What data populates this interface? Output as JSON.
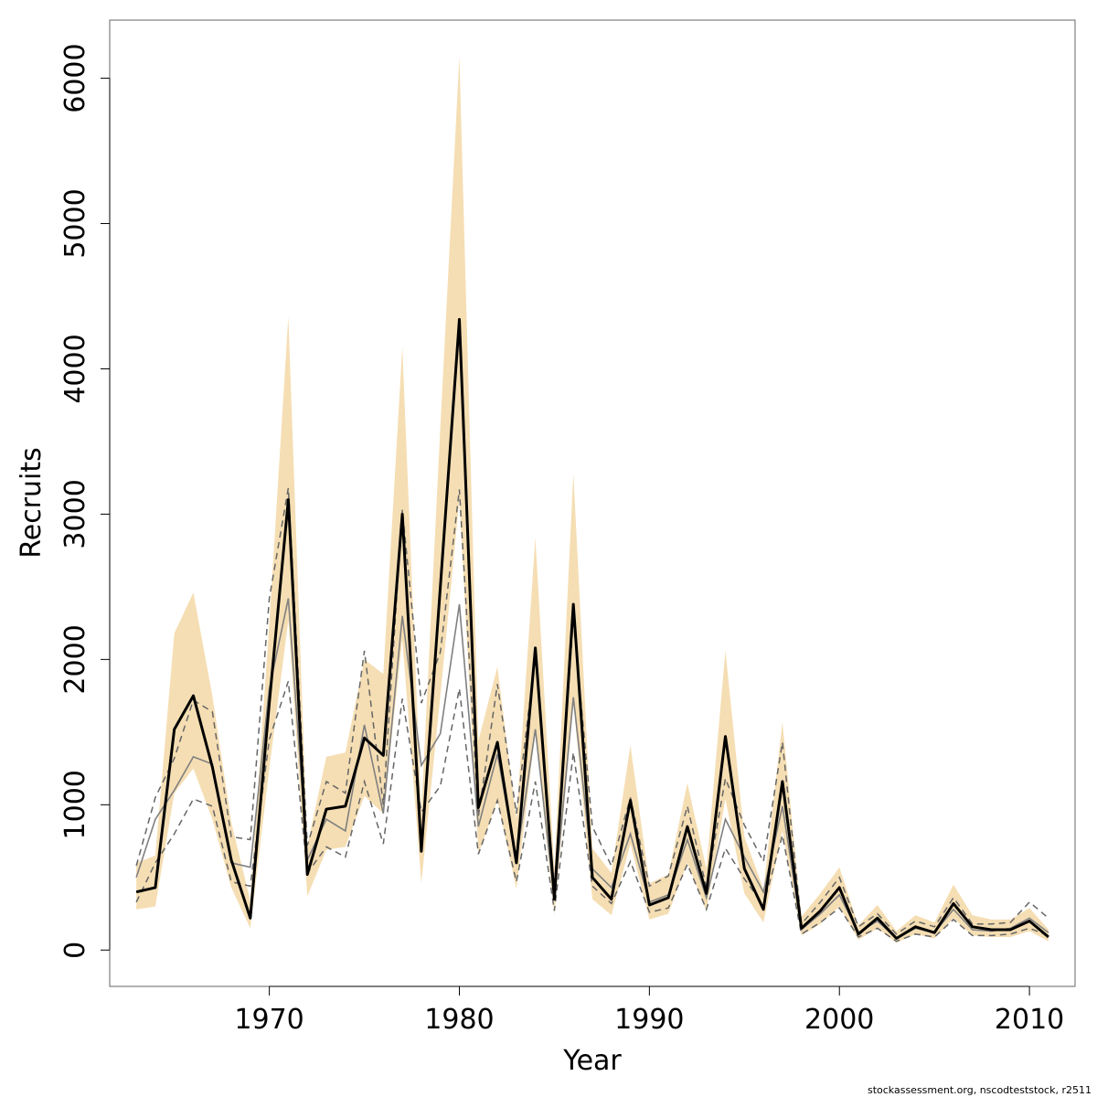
{
  "chart_data": {
    "type": "line",
    "xlabel": "Year",
    "ylabel": "Recruits",
    "xlim": [
      1961.6,
      2012.4
    ],
    "ylim": [
      -250,
      6400
    ],
    "x_ticks": [
      1970,
      1980,
      1990,
      2000,
      2010
    ],
    "y_ticks": [
      0,
      1000,
      2000,
      3000,
      4000,
      5000,
      6000
    ],
    "footnote": "stockassessment.org, nscodteststock, r2511",
    "colors": {
      "band": "#f5deb3",
      "estimate": "#000000",
      "previous": "#808080",
      "previous_dashed": "#666666",
      "frame": "#666666"
    },
    "years": [
      1963,
      1964,
      1965,
      1966,
      1967,
      1968,
      1969,
      1970,
      1971,
      1972,
      1973,
      1974,
      1975,
      1976,
      1977,
      1978,
      1979,
      1980,
      1981,
      1982,
      1983,
      1984,
      1985,
      1986,
      1987,
      1988,
      1989,
      1990,
      1991,
      1992,
      1993,
      1994,
      1995,
      1996,
      1997,
      1998,
      1999,
      2000,
      2001,
      2002,
      2003,
      2004,
      2005,
      2006,
      2007,
      2008,
      2009,
      2010,
      2011
    ],
    "series": [
      {
        "role": "estimate",
        "values": [
          400,
          430,
          1520,
          1750,
          1260,
          620,
          220,
          1700,
          3100,
          520,
          970,
          990,
          1460,
          1340,
          3000,
          680,
          2500,
          4340,
          980,
          1430,
          600,
          2080,
          350,
          2380,
          500,
          350,
          1030,
          310,
          360,
          850,
          390,
          1470,
          560,
          280,
          1160,
          150,
          270,
          430,
          110,
          220,
          80,
          160,
          120,
          320,
          160,
          140,
          140,
          200,
          90
        ]
      },
      {
        "role": "band_upper",
        "values": [
          600,
          650,
          2180,
          2460,
          1750,
          880,
          340,
          2250,
          4360,
          720,
          1330,
          1360,
          2000,
          1900,
          4150,
          960,
          3600,
          6150,
          1440,
          1950,
          900,
          2840,
          550,
          3280,
          700,
          530,
          1410,
          460,
          520,
          1150,
          560,
          2060,
          780,
          420,
          1570,
          230,
          390,
          570,
          170,
          310,
          130,
          240,
          190,
          450,
          240,
          210,
          210,
          290,
          140
        ]
      },
      {
        "role": "band_lower",
        "values": [
          280,
          300,
          1080,
          1250,
          900,
          430,
          150,
          1250,
          2270,
          370,
          690,
          710,
          1060,
          940,
          2140,
          460,
          1750,
          3100,
          660,
          1030,
          420,
          1500,
          240,
          1700,
          350,
          240,
          730,
          210,
          250,
          600,
          270,
          1040,
          390,
          190,
          820,
          100,
          180,
          300,
          70,
          150,
          50,
          110,
          80,
          220,
          100,
          90,
          90,
          130,
          60
        ]
      },
      {
        "role": "previous",
        "values": [
          500,
          900,
          1100,
          1330,
          1280,
          600,
          570,
          1800,
          2420,
          620,
          900,
          820,
          1550,
          940,
          2300,
          1270,
          1490,
          2380,
          850,
          1350,
          620,
          1520,
          350,
          1740,
          560,
          430,
          800,
          330,
          380,
          760,
          360,
          900,
          640,
          400,
          990,
          140,
          250,
          380,
          120,
          200,
          80,
          150,
          120,
          280,
          140,
          130,
          150,
          220,
          120
        ]
      },
      {
        "role": "previous_upper",
        "values": [
          580,
          1050,
          1320,
          1720,
          1640,
          780,
          760,
          2420,
          3180,
          720,
          1160,
          1080,
          2060,
          1000,
          3030,
          1700,
          2050,
          3170,
          920,
          1830,
          940,
          2030,
          420,
          2280,
          850,
          580,
          1050,
          440,
          510,
          990,
          430,
          1180,
          860,
          610,
          1430,
          180,
          330,
          500,
          160,
          250,
          110,
          200,
          160,
          360,
          180,
          180,
          190,
          330,
          220
        ]
      },
      {
        "role": "previous_lower",
        "values": [
          330,
          600,
          800,
          1040,
          990,
          470,
          440,
          1450,
          1850,
          530,
          710,
          640,
          1160,
          730,
          1730,
          950,
          1130,
          1800,
          660,
          1030,
          470,
          1160,
          270,
          1360,
          440,
          320,
          610,
          260,
          290,
          590,
          280,
          700,
          490,
          310,
          790,
          110,
          190,
          290,
          90,
          150,
          60,
          110,
          90,
          210,
          100,
          100,
          110,
          150,
          100
        ]
      }
    ]
  }
}
